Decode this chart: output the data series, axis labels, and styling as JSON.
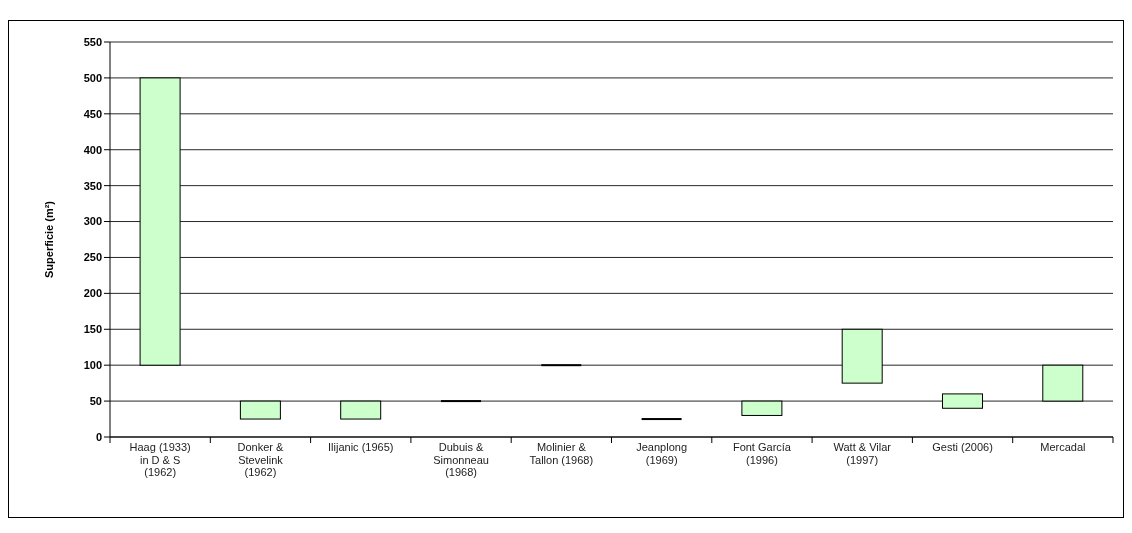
{
  "chart_data": {
    "type": "bar",
    "ylabel": "Superficie  (m²)",
    "categories": [
      "Haag (1933) in D & S (1962)",
      "Donker & Stevelink (1962)",
      "Ilijanic (1965)",
      "Dubuis & Simonneau (1968)",
      "Molinier & Tallon (1968)",
      "Jeanplong (1969)",
      "Font García (1996)",
      "Watt & Vilar (1997)",
      "Gesti (2006)",
      "Mercadal"
    ],
    "base": [
      100,
      25,
      25,
      50,
      100,
      25,
      30,
      75,
      40,
      50
    ],
    "values": [
      400,
      25,
      25,
      0,
      0,
      0,
      20,
      75,
      20,
      50
    ],
    "colors": [
      "#ccffcc",
      "#ccffcc",
      "#ccffcc",
      "#000000",
      "#000000",
      "#000000",
      "#ccffcc",
      "#ccffcc",
      "#ccffcc",
      "#ccffcc"
    ],
    "ylim": [
      0,
      550
    ],
    "yticks": [
      0,
      50,
      100,
      150,
      200,
      250,
      300,
      350,
      400,
      450,
      500,
      550
    ],
    "grid": "y"
  }
}
